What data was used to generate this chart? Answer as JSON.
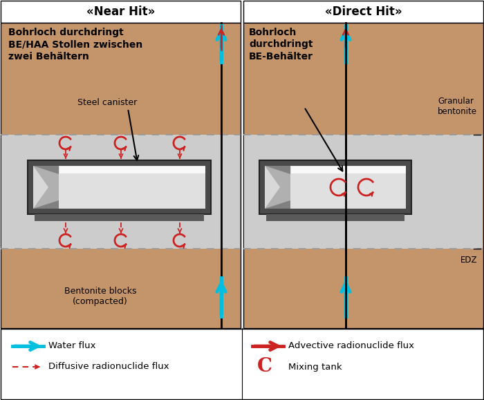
{
  "bg_color": "#c4956a",
  "tunnel_color": "#cccccc",
  "white": "#ffffff",
  "black": "#000000",
  "cyan_c": "#00bfdf",
  "red_c": "#cc2222",
  "dashed_lc": "#999999",
  "panel_left_title": "«Near Hit»",
  "panel_right_title": "«Direct Hit»",
  "text_left_bold": "Bohrloch durchdringt\nBE/HAA Stollen zwischen\nzwei Behältern",
  "text_right_bold": "Bohrloch\ndurchdringt\nBE-Behälter",
  "label_steel_canister": "Steel canister",
  "label_bentonite_blocks": "Bentonite blocks\n(compacted)",
  "label_granular_bentonite": "Granular\nbentonite",
  "label_edz": "EDZ",
  "legend_water_flux": "Water flux",
  "legend_diffusive": "Diffusive radionuclide flux",
  "legend_advective": "Advective radionuclide flux",
  "legend_mixing": "Mixing tank"
}
